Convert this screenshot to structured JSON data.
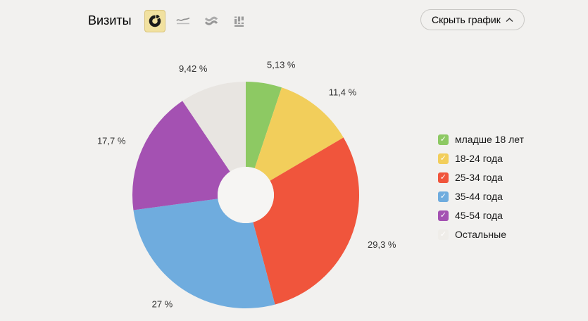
{
  "header": {
    "title": "Визиты",
    "chart_type_switcher": [
      {
        "name": "donut-chart",
        "selected": true
      },
      {
        "name": "line-chart",
        "selected": false
      },
      {
        "name": "stacked-area-chart",
        "selected": false
      },
      {
        "name": "bar-chart",
        "selected": false
      }
    ],
    "toggle_button": {
      "label": "Скрыть график",
      "icon": "chevron-up"
    }
  },
  "icons": {
    "check_glyph": "✓"
  },
  "chart_data": {
    "type": "pie",
    "donut": true,
    "title": "Визиты",
    "legend_position": "right",
    "value_suffix": "%",
    "series": [
      {
        "label": "младше 18 лет",
        "value": 5.13,
        "display": "5,13 %",
        "color": "#8dc963",
        "swatch": "#8dc963",
        "checked": true
      },
      {
        "label": "18-24 года",
        "value": 11.4,
        "display": "11,4 %",
        "color": "#f2ce5b",
        "swatch": "#f2ce5b",
        "checked": true
      },
      {
        "label": "25-34 года",
        "value": 29.3,
        "display": "29,3 %",
        "color": "#f0553c",
        "swatch": "#f0553c",
        "checked": true
      },
      {
        "label": "35-44 года",
        "value": 27,
        "display": "27 %",
        "color": "#6facde",
        "swatch": "#6facde",
        "checked": true
      },
      {
        "label": "45-54 года",
        "value": 17.7,
        "display": "17,7 %",
        "color": "#a451b2",
        "swatch": "#a451b2",
        "checked": true
      },
      {
        "label": "Остальные",
        "value": 9.42,
        "display": "9,42 %",
        "color": "#e8e5e1",
        "swatch": "#efede9",
        "checked": true
      }
    ]
  }
}
